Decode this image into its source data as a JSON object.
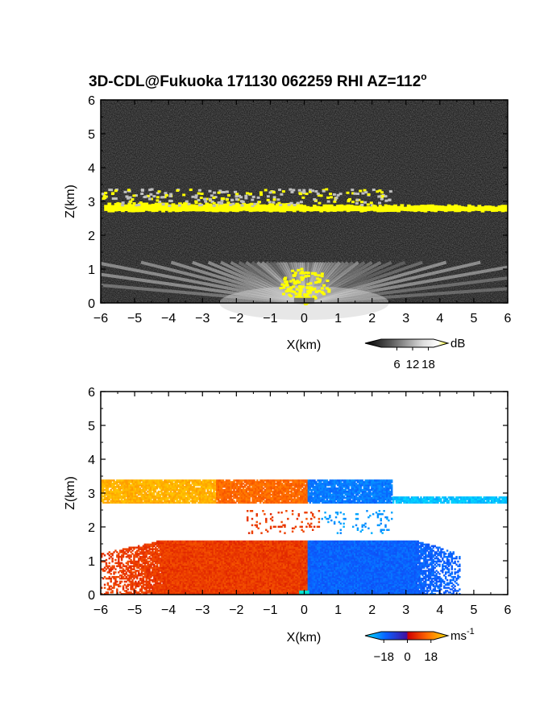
{
  "title": "3D-CDL@Fukuoka 171130 062259 RHI AZ=112",
  "title_superscript": "o",
  "chart_data": [
    {
      "type": "heatmap",
      "quantity": "backscatter",
      "xlabel": "X(km)",
      "ylabel": "Z(km)",
      "xlim": [
        -6,
        6
      ],
      "ylim": [
        0,
        6
      ],
      "xticks": [
        "-6",
        "-5",
        "-4",
        "-3",
        "-2",
        "-1",
        "0",
        "1",
        "2",
        "3",
        "4",
        "5",
        "6"
      ],
      "yticks": [
        "0",
        "1",
        "2",
        "3",
        "4",
        "5",
        "6"
      ],
      "colorbar": {
        "unit": "dB",
        "ticks": [
          "6",
          "12",
          "18"
        ],
        "range": [
          0,
          20
        ],
        "colors": [
          "#000000",
          "#ffffff",
          "#ffff00"
        ]
      },
      "features": [
        {
          "kind": "cloud-layer",
          "x_range": [
            -5.9,
            6
          ],
          "z_range": [
            2.7,
            2.9
          ],
          "level_db": 20
        },
        {
          "kind": "upper-layer-patches",
          "x_range": [
            -6,
            2.6
          ],
          "z_range": [
            2.9,
            3.4
          ],
          "level_db": 14
        },
        {
          "kind": "boundary-layer-fan",
          "x_range": [
            -6,
            6
          ],
          "z_range": [
            0,
            1.2
          ],
          "level_db": 10
        },
        {
          "kind": "near-lidar-strong-returns",
          "x_range": [
            -0.9,
            0.7
          ],
          "z_range": [
            0,
            1.1
          ],
          "level_db": 20
        }
      ]
    },
    {
      "type": "heatmap",
      "quantity": "doppler-velocity",
      "xlabel": "X(km)",
      "ylabel": "Z(km)",
      "xlim": [
        -6,
        6
      ],
      "ylim": [
        0,
        6
      ],
      "xticks": [
        "-6",
        "-5",
        "-4",
        "-3",
        "-2",
        "-1",
        "0",
        "1",
        "2",
        "3",
        "4",
        "5",
        "6"
      ],
      "yticks": [
        "0",
        "1",
        "2",
        "3",
        "4",
        "5",
        "6"
      ],
      "colorbar": {
        "unit": "ms",
        "unit_exponent": "-1",
        "ticks": [
          "-18",
          "0",
          "18"
        ],
        "range": [
          -20,
          20
        ]
      },
      "regions": [
        {
          "x_range": [
            -6,
            -2.6
          ],
          "z_range": [
            2.7,
            3.4
          ],
          "velocity": 16
        },
        {
          "x_range": [
            -2.6,
            0.1
          ],
          "z_range": [
            2.7,
            3.4
          ],
          "velocity": 10
        },
        {
          "x_range": [
            0.1,
            2.6
          ],
          "z_range": [
            2.7,
            3.4
          ],
          "velocity": -12
        },
        {
          "x_range": [
            2.6,
            6
          ],
          "z_range": [
            2.7,
            2.9
          ],
          "velocity": -17
        },
        {
          "x_range": [
            -1.7,
            0.5
          ],
          "z_range": [
            1.8,
            2.5
          ],
          "velocity": 6
        },
        {
          "x_range": [
            0.5,
            2.6
          ],
          "z_range": [
            1.8,
            2.5
          ],
          "velocity": -14
        },
        {
          "x_range": [
            -6,
            0.1
          ],
          "z_range": [
            0,
            1.6
          ],
          "velocity": 6
        },
        {
          "x_range": [
            0.1,
            4.6
          ],
          "z_range": [
            0,
            1.6
          ],
          "velocity": -10
        }
      ]
    }
  ]
}
